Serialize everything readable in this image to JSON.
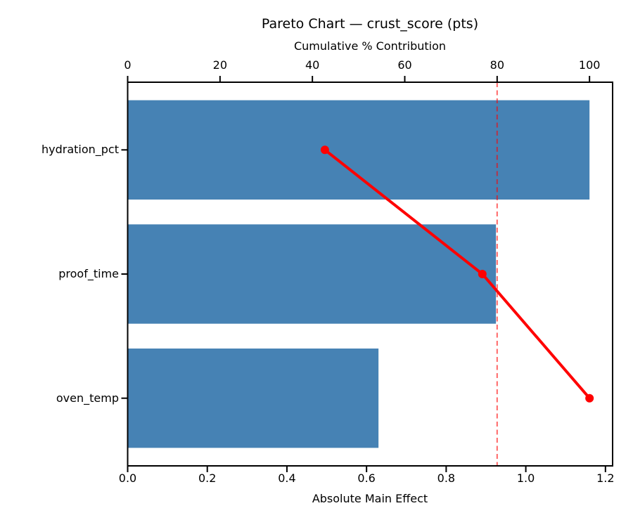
{
  "chart_data": {
    "type": "bar",
    "variant": "pareto",
    "orientation": "horizontal",
    "title": "Pareto Chart — crust_score (pts)",
    "categories": [
      "hydration_pct",
      "proof_time",
      "oven_temp"
    ],
    "series": [
      {
        "name": "Absolute Main Effect",
        "type": "bar",
        "values": [
          1.16,
          0.925,
          0.63
        ],
        "color": "#4682b4"
      },
      {
        "name": "Cumulative % Contribution",
        "type": "line",
        "values": [
          42.7,
          76.8,
          100.0
        ],
        "color": "#ff0000"
      }
    ],
    "threshold": {
      "value": 80,
      "axis": "top",
      "color": "#ff0000",
      "opacity": 0.55,
      "style": "dashed"
    },
    "top_axis": {
      "label": "Cumulative % Contribution",
      "ticks": [
        "0",
        "20",
        "40",
        "60",
        "80",
        "100"
      ],
      "tick_values": [
        0,
        20,
        40,
        60,
        80,
        100
      ],
      "range": [
        0,
        105
      ]
    },
    "bottom_axis": {
      "label": "Absolute Main Effect",
      "ticks": [
        "0.0",
        "0.2",
        "0.4",
        "0.6",
        "0.8",
        "1.0",
        "1.2"
      ],
      "tick_values": [
        0.0,
        0.2,
        0.4,
        0.6,
        0.8,
        1.0,
        1.2
      ],
      "range": [
        0,
        1.218
      ]
    },
    "grid": false,
    "legend": false,
    "colors": {
      "bar": "#4682b4",
      "line": "#ff0000",
      "spine": "#000000",
      "background": "#ffffff"
    }
  }
}
